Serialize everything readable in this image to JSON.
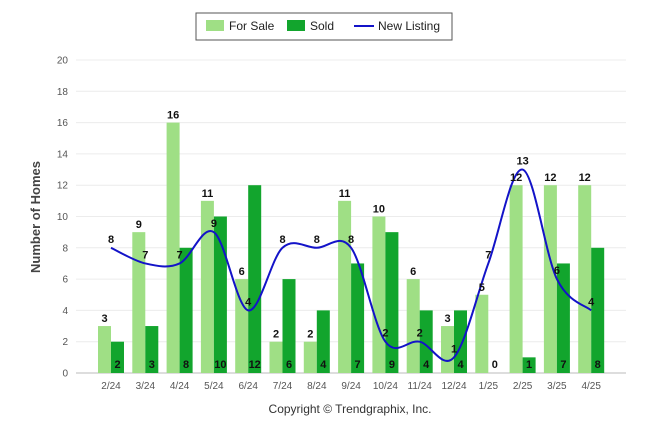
{
  "chart_data": {
    "type": "bar",
    "categories": [
      "2/24",
      "3/24",
      "4/24",
      "5/24",
      "6/24",
      "7/24",
      "8/24",
      "9/24",
      "10/24",
      "11/24",
      "12/24",
      "1/25",
      "2/25",
      "3/25",
      "4/25"
    ],
    "series": [
      {
        "name": "For Sale",
        "kind": "bar",
        "color": "#9fdf85",
        "values": [
          3,
          9,
          16,
          11,
          6,
          2,
          2,
          11,
          10,
          6,
          3,
          5,
          12,
          12,
          12
        ]
      },
      {
        "name": "Sold",
        "kind": "bar",
        "color": "#12a52d",
        "values": [
          2,
          3,
          8,
          10,
          12,
          6,
          4,
          7,
          9,
          4,
          4,
          0,
          1,
          7,
          8
        ]
      },
      {
        "name": "New Listing",
        "kind": "line",
        "color": "#1313c8",
        "values": [
          8,
          7,
          7,
          9,
          4,
          8,
          8,
          8,
          2,
          2,
          1,
          7,
          13,
          6,
          4
        ]
      }
    ],
    "ylabel": "Number of Homes",
    "ylim": [
      0,
      20
    ],
    "yticks": [
      0,
      2,
      4,
      6,
      8,
      10,
      12,
      14,
      16,
      18,
      20
    ],
    "grid": true,
    "legend": "top-center",
    "footer": "Copyright © Trendgraphix, Inc."
  }
}
